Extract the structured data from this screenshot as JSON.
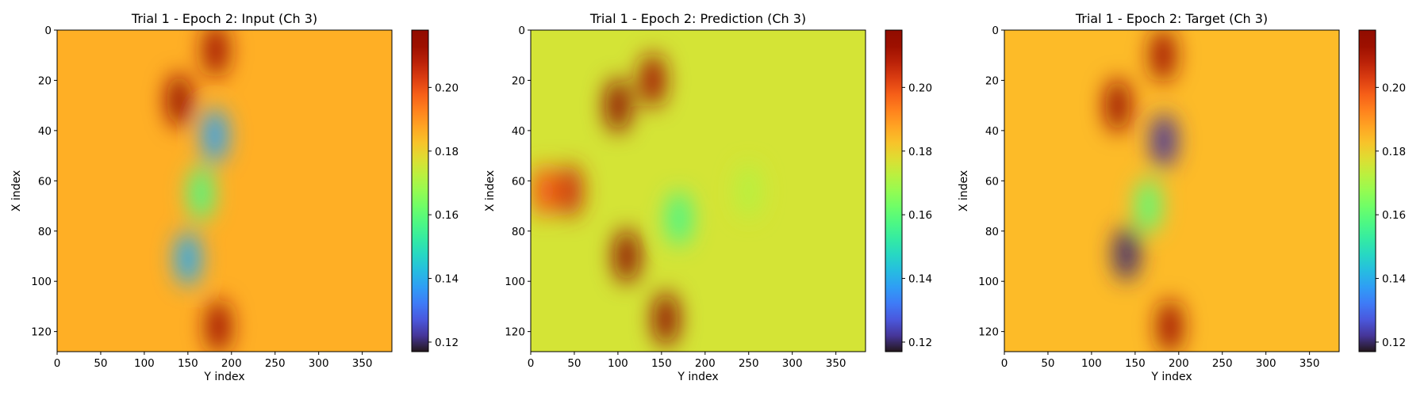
{
  "chart_data": [
    {
      "type": "heatmap",
      "title": "Trial 1 - Epoch 2: Input (Ch 3)",
      "xlabel": "Y index",
      "ylabel": "X index",
      "xlim": [
        0,
        384
      ],
      "ylim": [
        128,
        0
      ],
      "xticks": [
        "0",
        "50",
        "100",
        "150",
        "200",
        "250",
        "300",
        "350"
      ],
      "yticks": [
        "0",
        "20",
        "40",
        "60",
        "80",
        "100",
        "120"
      ],
      "colormap": "turbo",
      "colorbar": {
        "range": [
          0.117,
          0.218
        ],
        "ticks": [
          "0.12",
          "0.14",
          "0.16",
          "0.18",
          "0.20"
        ]
      },
      "base_value": 0.186,
      "features": [
        {
          "name": "dark red streak",
          "y": 182,
          "x": 8,
          "value": 0.212
        },
        {
          "name": "dark red streak",
          "y": 140,
          "x": 28,
          "value": 0.214
        },
        {
          "name": "blue blob",
          "y": 181,
          "x": 42,
          "value": 0.138
        },
        {
          "name": "cyan region",
          "y": 165,
          "x": 65,
          "value": 0.158
        },
        {
          "name": "blue blob",
          "y": 150,
          "x": 91,
          "value": 0.139
        },
        {
          "name": "dark red streak",
          "y": 185,
          "x": 118,
          "value": 0.212
        }
      ]
    },
    {
      "type": "heatmap",
      "title": "Trial 1 - Epoch 2: Prediction (Ch 3)",
      "xlabel": "Y index",
      "ylabel": "X index",
      "xlim": [
        0,
        384
      ],
      "ylim": [
        128,
        0
      ],
      "xticks": [
        "0",
        "50",
        "100",
        "150",
        "200",
        "250",
        "300",
        "350"
      ],
      "yticks": [
        "0",
        "20",
        "40",
        "60",
        "80",
        "100",
        "120"
      ],
      "colormap": "turbo",
      "colorbar": {
        "range": [
          0.117,
          0.218
        ],
        "ticks": [
          "0.12",
          "0.14",
          "0.16",
          "0.18",
          "0.20"
        ]
      },
      "base_value": 0.176,
      "features": [
        {
          "name": "orange band",
          "y": 15,
          "x": 64,
          "value": 0.198
        },
        {
          "name": "red band",
          "y": 45,
          "x": 64,
          "value": 0.205
        },
        {
          "name": "dark red ridge",
          "y": 100,
          "x": 30,
          "value": 0.218
        },
        {
          "name": "dark red ridge",
          "y": 110,
          "x": 90,
          "value": 0.218
        },
        {
          "name": "red streak",
          "y": 140,
          "x": 20,
          "value": 0.212
        },
        {
          "name": "dark red streak",
          "y": 155,
          "x": 115,
          "value": 0.216
        },
        {
          "name": "cyan region",
          "y": 170,
          "x": 75,
          "value": 0.157
        },
        {
          "name": "light green",
          "y": 250,
          "x": 64,
          "value": 0.172
        }
      ]
    },
    {
      "type": "heatmap",
      "title": "Trial 1 - Epoch 2: Target (Ch 3)",
      "xlabel": "Y index",
      "ylabel": "X index",
      "xlim": [
        0,
        384
      ],
      "ylim": [
        128,
        0
      ],
      "xticks": [
        "0",
        "50",
        "100",
        "150",
        "200",
        "250",
        "300",
        "350"
      ],
      "yticks": [
        "0",
        "20",
        "40",
        "60",
        "80",
        "100",
        "120"
      ],
      "colormap": "turbo",
      "colorbar": {
        "range": [
          0.117,
          0.218
        ],
        "ticks": [
          "0.12",
          "0.14",
          "0.16",
          "0.18",
          "0.20"
        ]
      },
      "base_value": 0.184,
      "features": [
        {
          "name": "dark red streak",
          "y": 182,
          "x": 10,
          "value": 0.212
        },
        {
          "name": "dark red streak",
          "y": 130,
          "x": 30,
          "value": 0.213
        },
        {
          "name": "dark blue blob",
          "y": 183,
          "x": 44,
          "value": 0.122
        },
        {
          "name": "cyan region",
          "y": 165,
          "x": 70,
          "value": 0.16
        },
        {
          "name": "dark blue blob",
          "y": 140,
          "x": 89,
          "value": 0.12
        },
        {
          "name": "dark red streak",
          "y": 190,
          "x": 118,
          "value": 0.212
        }
      ]
    }
  ]
}
